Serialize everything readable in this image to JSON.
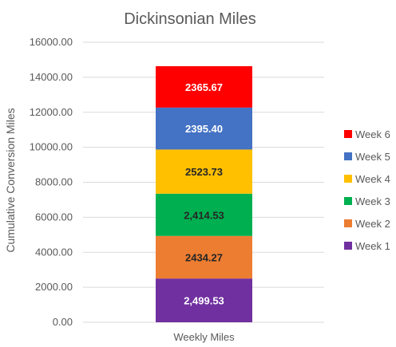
{
  "chart_data": {
    "type": "bar",
    "stacked": true,
    "title": "Dickinsonian Miles",
    "xlabel": "",
    "ylabel": "Cumulative Conversion Miles",
    "categories": [
      "Weekly Miles"
    ],
    "ylim": [
      0,
      16000
    ],
    "yticks": [
      "0.00",
      "2000.00",
      "4000.00",
      "6000.00",
      "8000.00",
      "10000.00",
      "12000.00",
      "14000.00",
      "16000.00"
    ],
    "ytick_values": [
      0,
      2000,
      4000,
      6000,
      8000,
      10000,
      12000,
      14000,
      16000
    ],
    "grid": true,
    "legend_position": "right",
    "series": [
      {
        "name": "Week 1",
        "values": [
          2499.53
        ],
        "label": "2,499.53",
        "color": "#7030A0",
        "label_color": "#ffffff"
      },
      {
        "name": "Week 2",
        "values": [
          2434.27
        ],
        "label": "2434.27",
        "color": "#ED7D31",
        "label_color": "#262626"
      },
      {
        "name": "Week 3",
        "values": [
          2414.53
        ],
        "label": "2,414.53",
        "color": "#00B050",
        "label_color": "#262626"
      },
      {
        "name": "Week 4",
        "values": [
          2523.73
        ],
        "label": "2523.73",
        "color": "#FFC000",
        "label_color": "#262626"
      },
      {
        "name": "Week 5",
        "values": [
          2395.4
        ],
        "label": "2395.40",
        "color": "#4472C4",
        "label_color": "#ffffff"
      },
      {
        "name": "Week 6",
        "values": [
          2365.67
        ],
        "label": "2365.67",
        "color": "#FF0000",
        "label_color": "#ffffff"
      }
    ]
  }
}
